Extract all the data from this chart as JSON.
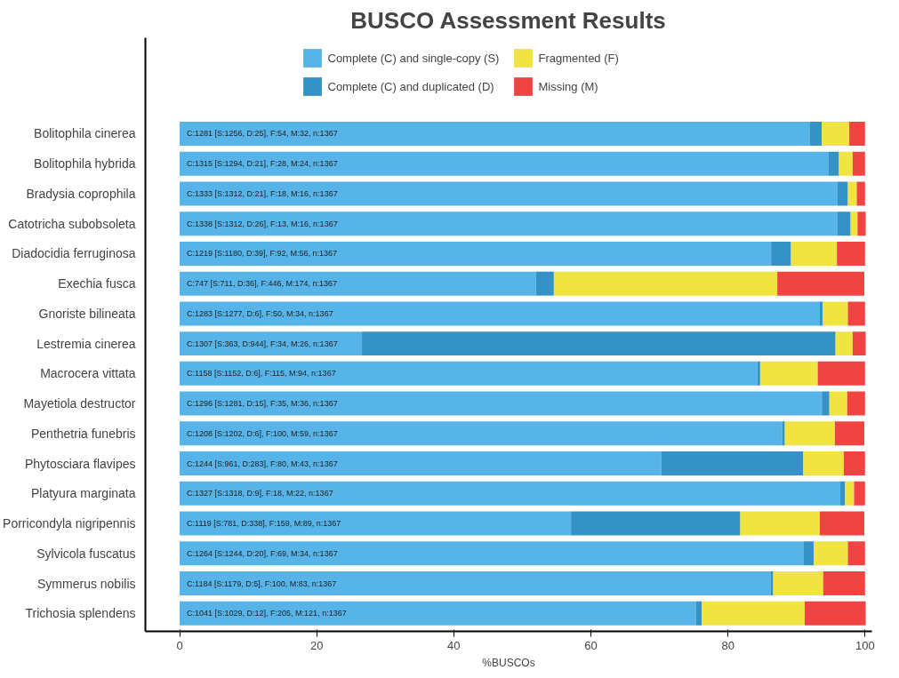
{
  "chart_data": {
    "type": "bar",
    "orientation": "horizontal",
    "stacked": true,
    "title": "BUSCO Assessment Results",
    "xlabel": "%BUSCOs",
    "categories": [
      "Bolitophila cinerea",
      "Bolitophila hybrida",
      "Bradysia coprophila",
      "Catotricha subobsoleta",
      "Diadocidia ferruginosa",
      "Exechia fusca",
      "Gnoriste bilineata",
      "Lestremia cinerea",
      "Macrocera vittata",
      "Mayetiola destructor",
      "Penthetria funebris",
      "Phytosciara flavipes",
      "Platyura marginata",
      "Porricondyla nigripennis",
      "Sylvicola fuscatus",
      "Symmerus nobilis",
      "Trichosia splendens"
    ],
    "series": [
      {
        "name": "Complete (C) and single-copy (S)",
        "color": "#56b4e9",
        "values": [
          91.9,
          94.7,
          96.0,
          96.0,
          86.3,
          52.0,
          93.4,
          26.6,
          84.3,
          93.7,
          87.9,
          70.3,
          96.4,
          57.1,
          91.0,
          86.2,
          75.3
        ]
      },
      {
        "name": "Complete (C) and duplicated (D)",
        "color": "#3492c7",
        "values": [
          1.8,
          1.5,
          1.5,
          1.9,
          2.9,
          2.6,
          0.4,
          69.1,
          0.4,
          1.1,
          0.4,
          20.7,
          0.7,
          24.7,
          1.5,
          0.4,
          0.9
        ]
      },
      {
        "name": "Fragmented (F)",
        "color": "#f0e442",
        "values": [
          4.0,
          2.0,
          1.3,
          1.0,
          6.7,
          32.6,
          3.7,
          2.5,
          8.4,
          2.6,
          7.3,
          5.9,
          1.3,
          11.6,
          5.0,
          7.3,
          15.0
        ]
      },
      {
        "name": "Missing (M)",
        "color": "#f04442",
        "values": [
          2.3,
          1.8,
          1.2,
          1.2,
          4.1,
          12.7,
          2.5,
          1.9,
          6.9,
          2.6,
          4.3,
          3.1,
          1.6,
          6.5,
          2.5,
          6.1,
          8.9
        ]
      }
    ],
    "annotations": [
      "C:1281 [S:1256, D:25], F:54, M:32, n:1367",
      "C:1315 [S:1294, D:21], F:28, M:24, n:1367",
      "C:1333 [S:1312, D:21], F:18, M:16, n:1367",
      "C:1338 [S:1312, D:26], F:13, M:16, n:1367",
      "C:1219 [S:1180, D:39], F:92, M:56, n:1367",
      "C:747 [S:711, D:36], F:446, M:174, n:1367",
      "C:1283 [S:1277, D:6], F:50, M:34, n:1367",
      "C:1307 [S:363, D:944], F:34, M:26, n:1367",
      "C:1158 [S:1152, D:6], F:115, M:94, n:1367",
      "C:1296 [S:1281, D:15], F:35, M:36, n:1367",
      "C:1208 [S:1202, D:6], F:100, M:59, n:1367",
      "C:1244 [S:961, D:283], F:80, M:43, n:1367",
      "C:1327 [S:1318, D:9], F:18, M:22, n:1367",
      "C:1119 [S:781, D:338], F:159, M:89, n:1367",
      "C:1264 [S:1244, D:20], F:69, M:34, n:1367",
      "C:1184 [S:1179, D:5], F:100, M:83, n:1367",
      "C:1041 [S:1029, D:12], F:205, M:121, n:1367"
    ],
    "xlim": [
      -5,
      101
    ],
    "xticks": [
      0,
      20,
      40,
      60,
      80,
      100
    ],
    "grid": false,
    "legend": "top"
  }
}
